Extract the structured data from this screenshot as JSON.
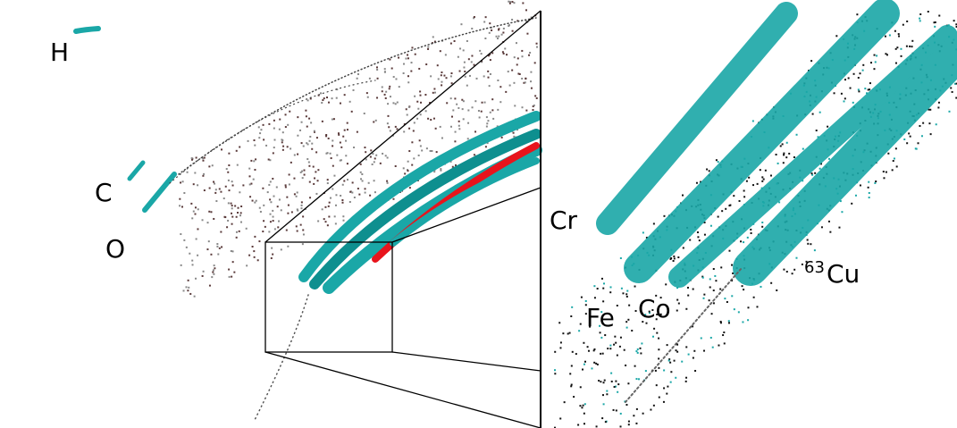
{
  "labels": {
    "left": [
      "H",
      "C",
      "O"
    ],
    "right": [
      "Cr",
      "Fe",
      "Co"
    ],
    "isotope": {
      "mass": "63",
      "symbol": "Cu"
    }
  }
}
